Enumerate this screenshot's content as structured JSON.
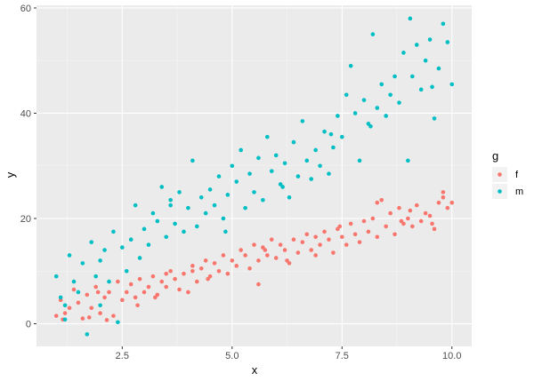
{
  "chart_data": {
    "type": "scatter",
    "title": "",
    "xlabel": "x",
    "ylabel": "y",
    "xlim": [
      0.55,
      10.45
    ],
    "ylim": [
      -4.3,
      60.5
    ],
    "x_ticks": [
      2.5,
      5.0,
      7.5,
      10.0
    ],
    "x_tick_labels": [
      "2.5",
      "5.0",
      "7.5",
      "10.0"
    ],
    "y_ticks": [
      0,
      20,
      40,
      60
    ],
    "y_tick_labels": [
      "0",
      "20",
      "40",
      "60"
    ],
    "grid": true,
    "background": "#ebebeb",
    "legend": {
      "title": "g",
      "position": "right"
    },
    "series": [
      {
        "name": "f",
        "color": "#f8766d",
        "points": [
          [
            1.0,
            1.5
          ],
          [
            1.1,
            4.5
          ],
          [
            1.2,
            2.0
          ],
          [
            1.3,
            3.0
          ],
          [
            1.4,
            6.5
          ],
          [
            1.5,
            4.0
          ],
          [
            1.6,
            1.0
          ],
          [
            1.7,
            5.5
          ],
          [
            1.8,
            3.0
          ],
          [
            1.9,
            7.0
          ],
          [
            2.0,
            2.0
          ],
          [
            2.1,
            5.0
          ],
          [
            2.2,
            6.0
          ],
          [
            2.3,
            1.5
          ],
          [
            2.4,
            8.0
          ],
          [
            2.5,
            4.5
          ],
          [
            2.6,
            6.0
          ],
          [
            2.7,
            7.5
          ],
          [
            2.8,
            5.0
          ],
          [
            2.9,
            8.5
          ],
          [
            3.0,
            6.0
          ],
          [
            3.1,
            7.0
          ],
          [
            3.2,
            9.0
          ],
          [
            3.3,
            5.5
          ],
          [
            3.4,
            8.0
          ],
          [
            3.5,
            7.0
          ],
          [
            3.6,
            10.0
          ],
          [
            3.7,
            8.5
          ],
          [
            3.8,
            6.5
          ],
          [
            3.9,
            9.5
          ],
          [
            4.0,
            6.0
          ],
          [
            4.1,
            11.0
          ],
          [
            4.2,
            8.0
          ],
          [
            4.3,
            10.5
          ],
          [
            4.4,
            12.0
          ],
          [
            4.5,
            9.0
          ],
          [
            4.6,
            11.5
          ],
          [
            4.7,
            10.0
          ],
          [
            4.8,
            13.0
          ],
          [
            4.9,
            9.5
          ],
          [
            5.0,
            12.0
          ],
          [
            5.1,
            11.0
          ],
          [
            5.2,
            14.0
          ],
          [
            5.3,
            13.0
          ],
          [
            5.4,
            10.5
          ],
          [
            5.5,
            15.0
          ],
          [
            5.6,
            12.0
          ],
          [
            5.7,
            14.5
          ],
          [
            5.8,
            13.0
          ],
          [
            5.9,
            16.0
          ],
          [
            6.0,
            12.5
          ],
          [
            6.1,
            15.0
          ],
          [
            6.2,
            14.0
          ],
          [
            6.3,
            11.5
          ],
          [
            6.4,
            16.0
          ],
          [
            6.5,
            13.5
          ],
          [
            6.6,
            15.5
          ],
          [
            6.7,
            17.0
          ],
          [
            6.8,
            14.0
          ],
          [
            6.9,
            16.5
          ],
          [
            7.0,
            15.0
          ],
          [
            7.1,
            17.5
          ],
          [
            7.2,
            16.0
          ],
          [
            7.3,
            13.5
          ],
          [
            7.4,
            18.0
          ],
          [
            7.5,
            16.5
          ],
          [
            7.6,
            15.0
          ],
          [
            7.7,
            19.0
          ],
          [
            7.8,
            17.0
          ],
          [
            7.9,
            15.5
          ],
          [
            8.0,
            19.5
          ],
          [
            8.1,
            17.5
          ],
          [
            8.2,
            20.0
          ],
          [
            8.3,
            16.5
          ],
          [
            8.4,
            23.5
          ],
          [
            8.5,
            18.5
          ],
          [
            8.6,
            21.0
          ],
          [
            8.7,
            17.0
          ],
          [
            8.8,
            22.0
          ],
          [
            8.9,
            19.0
          ],
          [
            9.0,
            20.0
          ],
          [
            9.1,
            18.5
          ],
          [
            9.2,
            22.5
          ],
          [
            9.3,
            19.5
          ],
          [
            9.4,
            21.0
          ],
          [
            9.5,
            20.5
          ],
          [
            9.6,
            18.0
          ],
          [
            9.7,
            23.0
          ],
          [
            9.8,
            24.0
          ],
          [
            9.9,
            22.0
          ],
          [
            10.0,
            23.0
          ],
          [
            1.15,
            0.8
          ],
          [
            1.75,
            1.2
          ],
          [
            2.15,
            0.7
          ],
          [
            5.6,
            7.5
          ],
          [
            8.3,
            23.0
          ],
          [
            9.8,
            25.0
          ],
          [
            9.05,
            21.5
          ],
          [
            2.85,
            3.5
          ],
          [
            4.45,
            8.5
          ],
          [
            6.25,
            12.0
          ],
          [
            7.45,
            18.5
          ],
          [
            3.25,
            5.0
          ],
          [
            9.55,
            19.0
          ],
          [
            1.95,
            6.0
          ],
          [
            5.75,
            14.0
          ],
          [
            8.85,
            19.5
          ],
          [
            6.9,
            13.0
          ],
          [
            4.1,
            10.0
          ],
          [
            3.5,
            9.5
          ]
        ]
      },
      {
        "name": "m",
        "color": "#00bfc4",
        "points": [
          [
            1.0,
            9.0
          ],
          [
            1.1,
            5.0
          ],
          [
            1.2,
            3.5
          ],
          [
            1.3,
            13.0
          ],
          [
            1.4,
            8.0
          ],
          [
            1.5,
            6.0
          ],
          [
            1.6,
            11.5
          ],
          [
            1.7,
            -2.0
          ],
          [
            1.8,
            15.5
          ],
          [
            1.9,
            9.0
          ],
          [
            2.0,
            12.0
          ],
          [
            2.1,
            14.0
          ],
          [
            2.2,
            8.0
          ],
          [
            2.3,
            17.5
          ],
          [
            2.4,
            0.3
          ],
          [
            2.5,
            14.5
          ],
          [
            2.6,
            10.0
          ],
          [
            2.7,
            16.0
          ],
          [
            2.8,
            22.5
          ],
          [
            2.9,
            12.5
          ],
          [
            3.0,
            18.0
          ],
          [
            3.1,
            15.0
          ],
          [
            3.2,
            21.0
          ],
          [
            3.3,
            19.5
          ],
          [
            3.4,
            26.0
          ],
          [
            3.5,
            16.5
          ],
          [
            3.6,
            23.5
          ],
          [
            3.7,
            19.0
          ],
          [
            3.8,
            25.0
          ],
          [
            3.9,
            17.5
          ],
          [
            4.0,
            22.0
          ],
          [
            4.1,
            31.0
          ],
          [
            4.2,
            18.5
          ],
          [
            4.3,
            24.0
          ],
          [
            4.4,
            21.0
          ],
          [
            4.5,
            25.5
          ],
          [
            4.6,
            22.5
          ],
          [
            4.7,
            28.0
          ],
          [
            4.8,
            20.0
          ],
          [
            4.9,
            24.5
          ],
          [
            5.0,
            30.0
          ],
          [
            5.1,
            27.0
          ],
          [
            5.2,
            33.0
          ],
          [
            5.3,
            22.0
          ],
          [
            5.4,
            28.5
          ],
          [
            5.5,
            25.0
          ],
          [
            5.6,
            31.5
          ],
          [
            5.7,
            23.5
          ],
          [
            5.8,
            35.5
          ],
          [
            5.9,
            29.0
          ],
          [
            6.0,
            32.0
          ],
          [
            6.1,
            26.5
          ],
          [
            6.2,
            30.5
          ],
          [
            6.3,
            24.0
          ],
          [
            6.4,
            34.5
          ],
          [
            6.5,
            28.0
          ],
          [
            6.6,
            38.5
          ],
          [
            6.7,
            31.0
          ],
          [
            6.8,
            27.5
          ],
          [
            6.9,
            33.0
          ],
          [
            7.0,
            30.0
          ],
          [
            7.1,
            36.5
          ],
          [
            7.2,
            28.5
          ],
          [
            7.3,
            33.5
          ],
          [
            7.4,
            39.5
          ],
          [
            7.5,
            35.5
          ],
          [
            7.6,
            43.5
          ],
          [
            7.7,
            49.0
          ],
          [
            7.8,
            40.0
          ],
          [
            7.9,
            31.0
          ],
          [
            8.0,
            42.5
          ],
          [
            8.1,
            38.0
          ],
          [
            8.2,
            55.0
          ],
          [
            8.3,
            41.0
          ],
          [
            8.4,
            45.5
          ],
          [
            8.5,
            39.5
          ],
          [
            8.6,
            43.5
          ],
          [
            8.7,
            47.0
          ],
          [
            8.8,
            42.0
          ],
          [
            8.9,
            51.5
          ],
          [
            9.0,
            31.0
          ],
          [
            9.05,
            58.0
          ],
          [
            9.1,
            47.0
          ],
          [
            9.2,
            53.0
          ],
          [
            9.3,
            44.5
          ],
          [
            9.4,
            50.0
          ],
          [
            9.5,
            54.0
          ],
          [
            9.6,
            39.0
          ],
          [
            9.7,
            48.5
          ],
          [
            9.8,
            57.0
          ],
          [
            9.9,
            53.5
          ],
          [
            10.0,
            45.5
          ],
          [
            1.2,
            0.8
          ],
          [
            2.0,
            3.5
          ],
          [
            3.6,
            22.5
          ],
          [
            4.85,
            17.5
          ],
          [
            6.15,
            26.0
          ],
          [
            7.25,
            36.0
          ],
          [
            8.15,
            37.5
          ],
          [
            9.55,
            45.0
          ]
        ]
      }
    ]
  }
}
